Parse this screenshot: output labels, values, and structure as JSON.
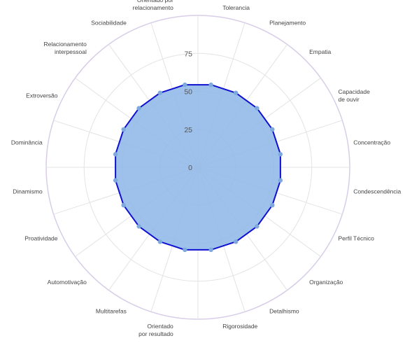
{
  "chart_data": {
    "type": "radar",
    "title": "",
    "categories": [
      "Tolerancia",
      "Planejamento",
      "Empatia",
      "Capacidade de ouvir",
      "Concentração",
      "Condescendência",
      "Perfil Técnico",
      "Organização",
      "Detalhismo",
      "Rigorosidade",
      "Orientado por resultado",
      "Multitarefas",
      "Automotivação",
      "Proatividade",
      "Dinamismo",
      "Dominância",
      "Extroversão",
      "Relacionamento interpessoal",
      "Sociabilidade",
      "Orientado por relacionamento"
    ],
    "series": [
      {
        "values": [
          55,
          55,
          55,
          55,
          55,
          55,
          55,
          55,
          55,
          55,
          55,
          55,
          55,
          55,
          55,
          55,
          55,
          55,
          55,
          55
        ]
      }
    ],
    "rlim": [
      0,
      100
    ],
    "ticks": [
      0,
      25,
      50,
      75
    ],
    "grid": true,
    "colors": {
      "fill": "#8fb8e8",
      "line": "#1010d0",
      "point": "#7ea9dc",
      "grid": "#e3e3e3",
      "outer_ring": "#d8cde8"
    }
  }
}
